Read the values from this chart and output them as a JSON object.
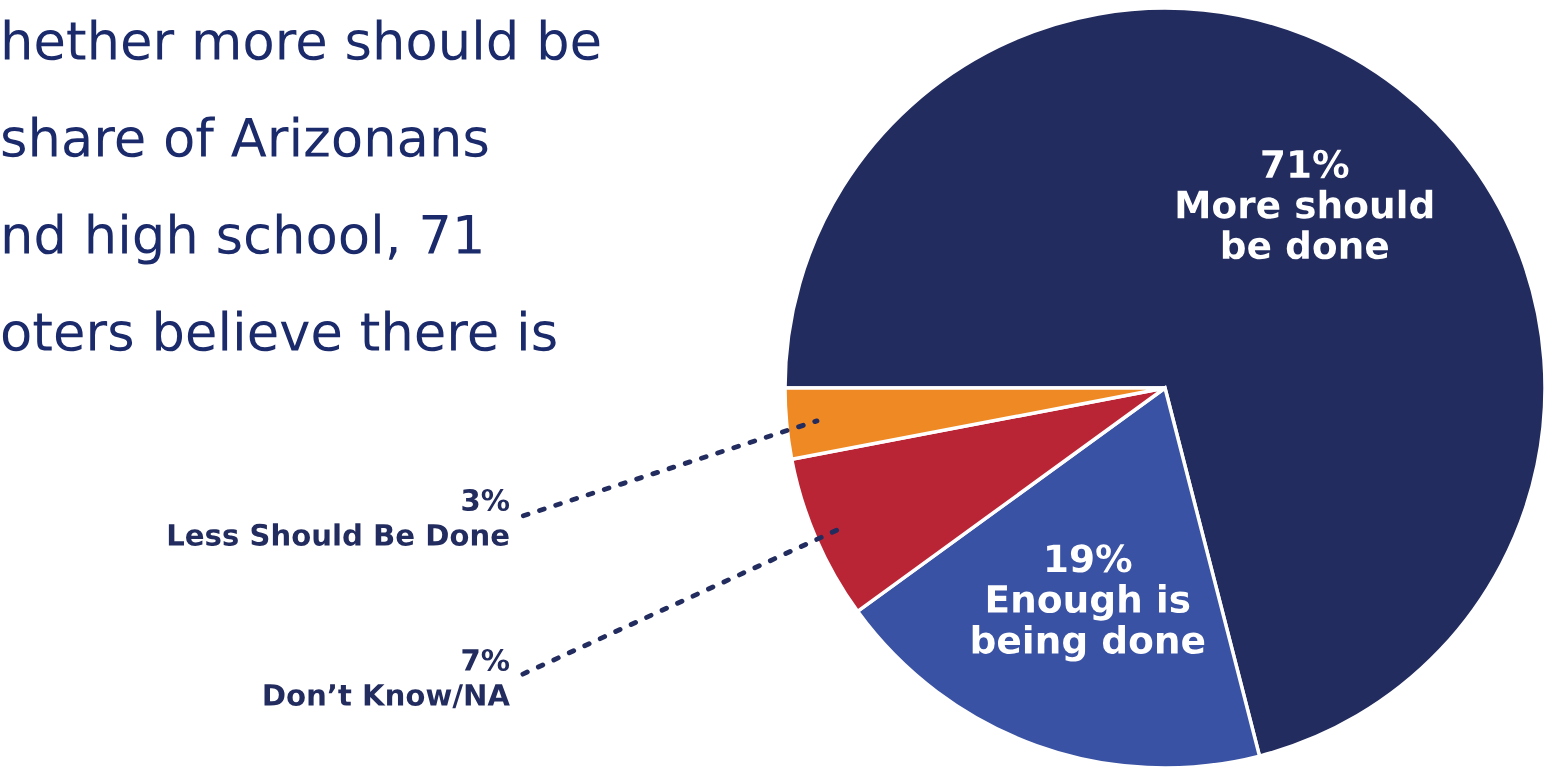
{
  "chart_data": {
    "type": "pie",
    "categories": [
      "More should be done",
      "Enough is being done",
      "Don’t Know/NA",
      "Less Should Be Done"
    ],
    "values": [
      71,
      19,
      7,
      3
    ],
    "value_labels": [
      "71%",
      "19%",
      "7%",
      "3%"
    ],
    "colors": [
      "#232c5e",
      "#3a52a3",
      "#ba2535",
      "#ee8924"
    ],
    "annotations": [
      "hether more should be",
      "share of Arizonans",
      "nd high school, 71",
      "oters believe there is"
    ],
    "legend": false
  }
}
